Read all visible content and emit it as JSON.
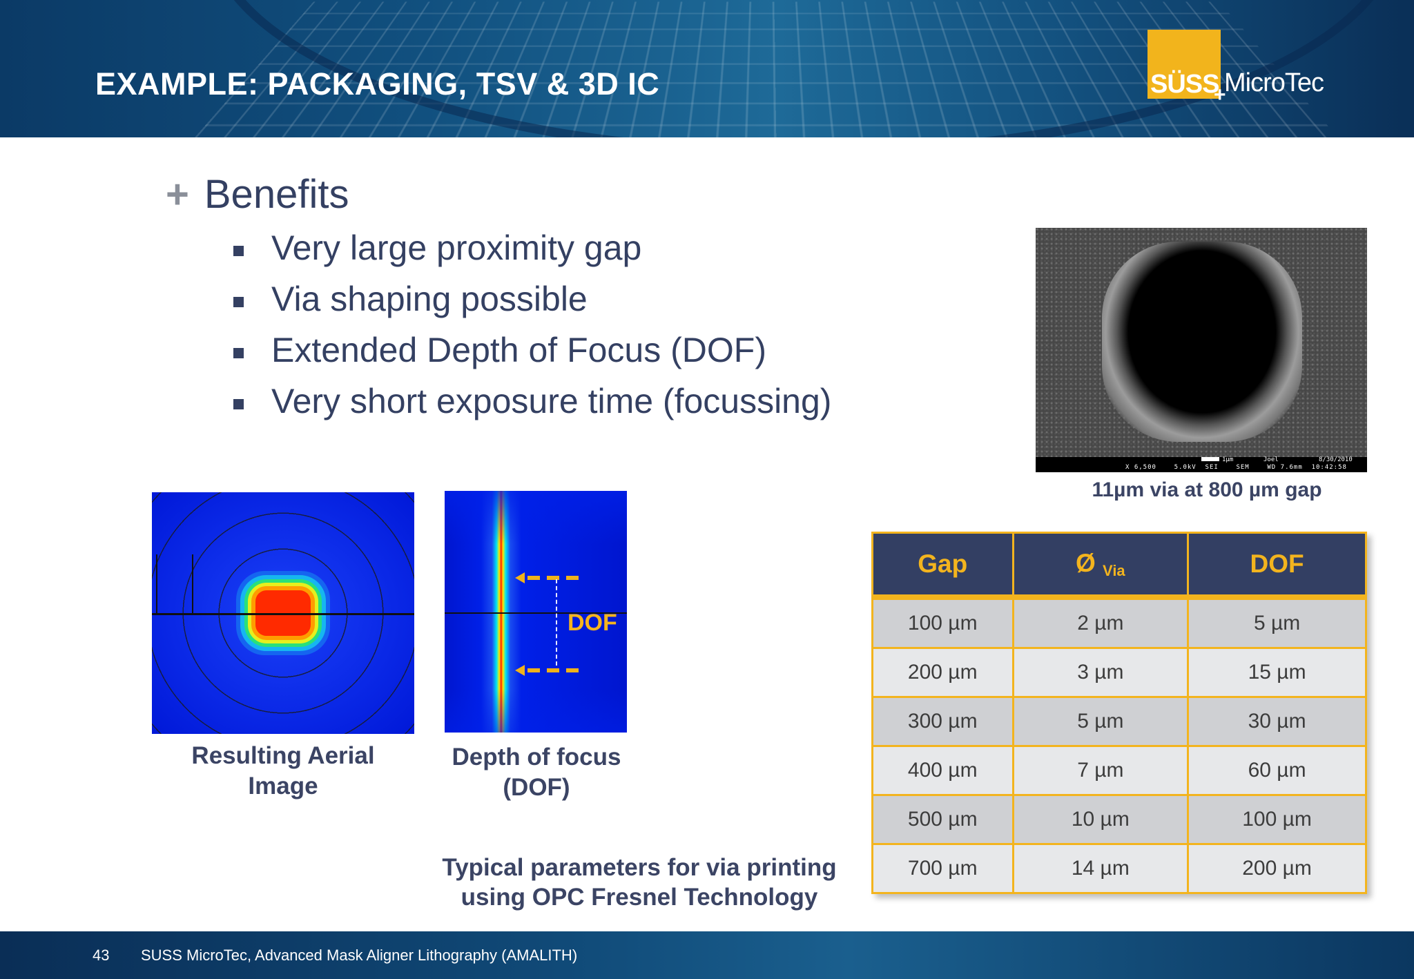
{
  "header": {
    "title": "EXAMPLE: PACKAGING, TSV & 3D IC"
  },
  "logo": {
    "suss": "SÜSS",
    "plus": "+",
    "microtec": "MicroTec"
  },
  "content": {
    "section_title": "Benefits",
    "bullets": [
      "Very large proximity gap",
      "Via shaping possible",
      "Extended Depth of Focus (DOF)",
      "Very short exposure time (focussing)"
    ]
  },
  "sem_image": {
    "info": "X 6,500    5.0kV  SEI    SEM    WD 7.6mm  10:42:58",
    "scale_label": "1μm",
    "user": "Joel",
    "date": "8/30/2010",
    "caption": "11µm via at 800 µm gap"
  },
  "figures": {
    "aerial_caption_line1": "Resulting Aerial",
    "aerial_caption_line2": "Image",
    "dof_label": "DOF",
    "dof_caption_line1": "Depth of focus",
    "dof_caption_line2": "(DOF)",
    "table_caption_line1": "Typical parameters for via printing",
    "table_caption_line2": "using OPC Fresnel Technology"
  },
  "table": {
    "headers": {
      "gap": "Gap",
      "via_symbol": "Ø",
      "via_sub": "Via",
      "dof": "DOF"
    },
    "rows": [
      [
        "100 µm",
        "2 µm",
        "5 µm"
      ],
      [
        "200 µm",
        "3 µm",
        "15 µm"
      ],
      [
        "300 µm",
        "5 µm",
        "30 µm"
      ],
      [
        "400 µm",
        "7 µm",
        "60 µm"
      ],
      [
        "500 µm",
        "10 µm",
        "100 µm"
      ],
      [
        "700 µm",
        "14 µm",
        "200 µm"
      ]
    ]
  },
  "footer": {
    "page_number": "43",
    "text": "SUSS MicroTec, Advanced Mask Aligner Lithography (AMALITH)"
  },
  "colors": {
    "navy": "#333f63",
    "gold": "#f3b41e",
    "text": "#344062"
  }
}
